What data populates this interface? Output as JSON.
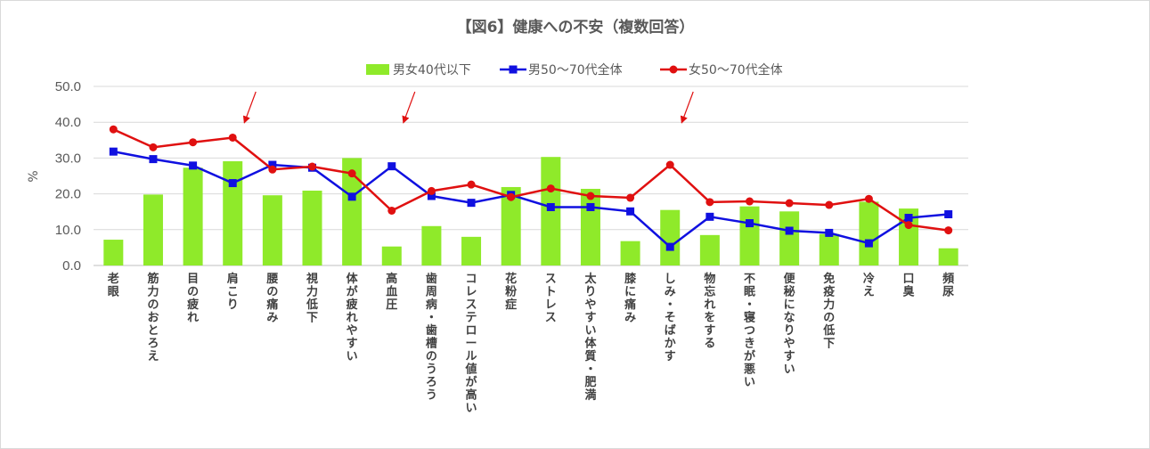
{
  "chart_data": {
    "type": "bar",
    "title": "【図6】健康への不安（複数回答）",
    "ylabel": "%",
    "ylim": [
      0,
      50
    ],
    "yticks": [
      "0.0",
      "10.0",
      "20.0",
      "30.0",
      "40.0",
      "50.0"
    ],
    "grid": true,
    "legend_position": "top",
    "categories": [
      "老眼",
      "筋力のおとろえ",
      "目の疲れ",
      "肩こり",
      "腰の痛み",
      "視力低下",
      "体が疲れやすい",
      "高血圧",
      "歯周病・歯槽のうろう",
      "コレステロール値が高い",
      "花粉症",
      "ストレス",
      "太りやすい体質・肥満",
      "膝に痛み",
      "しみ・そばかす",
      "物忘れをする",
      "不眠・寝つきが悪い",
      "便秘になりやすい",
      "免疫力の低下",
      "冷え",
      "口臭",
      "頻尿"
    ],
    "series": [
      {
        "name": "男女40代以下",
        "kind": "bar",
        "color": "#8fea2a",
        "values": [
          7.2,
          19.8,
          27.3,
          29.1,
          19.6,
          20.9,
          30.0,
          5.3,
          11.0,
          8.0,
          21.9,
          30.3,
          21.4,
          6.8,
          15.5,
          8.5,
          16.5,
          15.1,
          8.8,
          17.8,
          15.9,
          4.8
        ]
      },
      {
        "name": "男50～70代全体",
        "kind": "line",
        "color": "#1010e0",
        "marker": "square",
        "values": [
          31.8,
          29.7,
          27.9,
          23.0,
          28.1,
          27.3,
          19.2,
          27.7,
          19.4,
          17.5,
          19.7,
          16.3,
          16.3,
          15.1,
          5.2,
          13.6,
          11.8,
          9.7,
          9.1,
          6.2,
          13.3,
          14.3
        ]
      },
      {
        "name": "女50～70代全体",
        "kind": "line",
        "color": "#e01010",
        "marker": "circle",
        "values": [
          38.0,
          33.0,
          34.4,
          35.7,
          26.8,
          27.6,
          25.7,
          15.3,
          20.8,
          22.6,
          19.1,
          21.5,
          19.4,
          18.9,
          28.1,
          17.7,
          17.9,
          17.4,
          16.9,
          18.6,
          11.3,
          9.8
        ]
      }
    ],
    "annotations": [
      {
        "type": "arrow",
        "color": "#e01010",
        "category": "肩こり"
      },
      {
        "type": "arrow",
        "color": "#e01010",
        "category": "高血圧"
      },
      {
        "type": "arrow",
        "color": "#e01010",
        "category": "しみ・そばかす"
      }
    ]
  }
}
